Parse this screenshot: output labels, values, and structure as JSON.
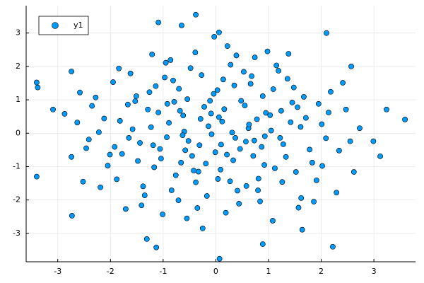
{
  "chart_data": {
    "type": "scatter",
    "xlim": [
      -3.6,
      3.79
    ],
    "ylim": [
      -3.85,
      3.82
    ],
    "xticks": [
      -3,
      -2,
      -1,
      0,
      1,
      2,
      3
    ],
    "yticks": [
      -3,
      -2,
      -1,
      0,
      1,
      2,
      3
    ],
    "grid": true,
    "legend": "top-left",
    "series": [
      {
        "name": "y1",
        "color": "#009AFA",
        "x": [
          0.12,
          -0.54,
          0.87,
          -1.23,
          1.45,
          -0.33,
          0.66,
          -1.78,
          2.01,
          -0.08,
          0.41,
          -0.97,
          1.12,
          -1.51,
          0.28,
          -0.71,
          1.83,
          -2.12,
          0.95,
          -0.22,
          0.57,
          -1.06,
          1.36,
          -1.88,
          0.03,
          -0.45,
          2.34,
          -2.41,
          0.74,
          -0.86,
          1.62,
          -1.35,
          0.19,
          -0.14,
          1.05,
          -0.62,
          0.48,
          -1.67,
          2.18,
          -2.05,
          0.33,
          -0.38,
          1.28,
          -1.14,
          0.81,
          -0.93,
          1.71,
          -1.44,
          0.09,
          -0.27,
          0.62,
          -0.79,
          1.19,
          -1.95,
          2.47,
          -2.63,
          0.44,
          -0.55,
          1.57,
          -1.71,
          0.98,
          -1.21,
          0.22,
          -0.01,
          1.91,
          -2.28,
          0.71,
          -0.66,
          1.42,
          -1.58,
          0.16,
          -0.31,
          2.62,
          -2.74,
          0.53,
          -0.48,
          1.08,
          -1.01,
          0.37,
          -0.17,
          1.24,
          -1.29,
          0.89,
          -0.84,
          2.09,
          -2.19,
          0.06,
          -0.6,
          1.67,
          -1.82,
          0.27,
          -0.39,
          1.33,
          -1.17,
          0.78,
          -0.7,
          1.95,
          -2.35,
          0.58,
          -0.25,
          2.29,
          -2.52,
          0.14,
          -1.48,
          1.52,
          -0.11,
          0.92,
          -0.89,
          1.15,
          -1.62,
          2.73,
          -2.87,
          0.46,
          -0.52,
          1.78,
          -1.92,
          0.68,
          -0.76,
          1.03,
          -1.09,
          0.31,
          -0.19,
          2.14,
          -2.22,
          0.84,
          -0.95,
          1.48,
          -1.38,
          0.04,
          -0.04,
          0.55,
          -0.58,
          1.26,
          -1.26,
          2.41,
          -2.46,
          0.39,
          -0.35,
          1.61,
          -1.65,
          0.73,
          -0.68,
          1.86,
          -1.84,
          0.21,
          -0.29,
          1.38,
          -1.41,
          2.55,
          -2.58,
          0.63,
          -0.63,
          1.09,
          -1.04,
          0.93,
          -0.92,
          0.1,
          -0.09,
          1.55,
          -1.53,
          2.02,
          -2.01,
          0.35,
          -0.42,
          0.8,
          -0.81,
          1.22,
          -1.19,
          -3.4,
          -3.38,
          -3.4,
          -3.09,
          3.59,
          3.24,
          3.12,
          2.99,
          -0.38,
          2.1,
          -1.09,
          0.07,
          -1.13,
          -1.31,
          2.22,
          0.89,
          -2.73,
          -2.74,
          1.64,
          2.57,
          -0.03,
          0.06,
          -0.65
        ],
        "values": [
          0.35,
          1.02,
          -0.41,
          0.18,
          0.92,
          -1.15,
          1.48,
          -0.62,
          0.27,
          -0.03,
          -1.72,
          1.67,
          -1.05,
          1.11,
          2.05,
          -2.01,
          -0.88,
          0.44,
          0.61,
          0.79,
          -0.25,
          -0.47,
          1.63,
          -1.38,
          1.29,
          -0.68,
          -0.52,
          -0.19,
          2.27,
          2.19,
          -1.94,
          -1.86,
          -2.38,
          0.21,
          0.08,
          0.53,
          0.97,
          0.86,
          1.24,
          -0.97,
          -0.81,
          -1.47,
          -0.33,
          1.41,
          -1.36,
          -0.12,
          0.46,
          -0.29,
          -1.09,
          1.74,
          0.15,
          0.94,
          1.87,
          1.53,
          0.71,
          0.32,
          -2.11,
          -2.55,
          -2.23,
          -2.27,
          2.45,
          2.36,
          2.61,
          -0.57,
          -1.41,
          1.07,
          -0.68,
          -0.88,
          0.33,
          0.12,
          0.72,
          -0.36,
          -1.16,
          -0.71,
          1.84,
          1.95,
          -2.62,
          -2.43,
          -0.14,
          -1.88,
          0.67,
          0.71,
          1.11,
          -1.71,
          -0.15,
          -1.62,
          0.48,
          0.05,
          1.09,
          0.37,
          -1.44,
          2.42,
          -0.71,
          -1.02,
          0.42,
          1.33,
          0.88,
          0.82,
          -1.58,
          -2.85,
          -1.78,
          -1.45,
          1.61,
          -0.83,
          -1.16,
          0.97,
          -0.95,
          0.31,
          2.03,
          1.79,
          0.15,
          0.58,
          -0.47,
          -0.23,
          -0.49,
          -0.41,
          1.71,
          -1.26,
          0.54,
          0.62,
          0.02,
          -0.91,
          0.62,
          0.03,
          -2.04,
          2.11,
          1.37,
          -1.59,
          -1.37,
          1.18,
          0.83,
          -0.51,
          -1.46,
          1.23,
          1.51,
          -0.45,
          2.33,
          -2.24,
          0.19,
          -0.14,
          -0.22,
          0.67,
          -2.05,
          1.94,
          -0.64,
          0.43,
          2.38,
          -2.16,
          -0.24,
          1.22,
          0.26,
          -0.06,
          1.32,
          -0.76,
          -0.09,
          0.88,
          -0.34,
          0.59,
          0.78,
          0.96,
          -0.98,
          -0.64,
          1.43,
          -1.12,
          -1.71,
          1.58,
          -0.14,
          -0.36,
          1.52,
          1.37,
          -1.3,
          0.71,
          0.41,
          0.71,
          -0.69,
          -0.24,
          3.55,
          3.0,
          3.32,
          -3.76,
          -3.42,
          -3.17,
          -3.4,
          -3.32,
          -2.47,
          1.85,
          -2.89,
          2.0,
          2.89,
          3.02,
          3.23
        ]
      }
    ]
  }
}
